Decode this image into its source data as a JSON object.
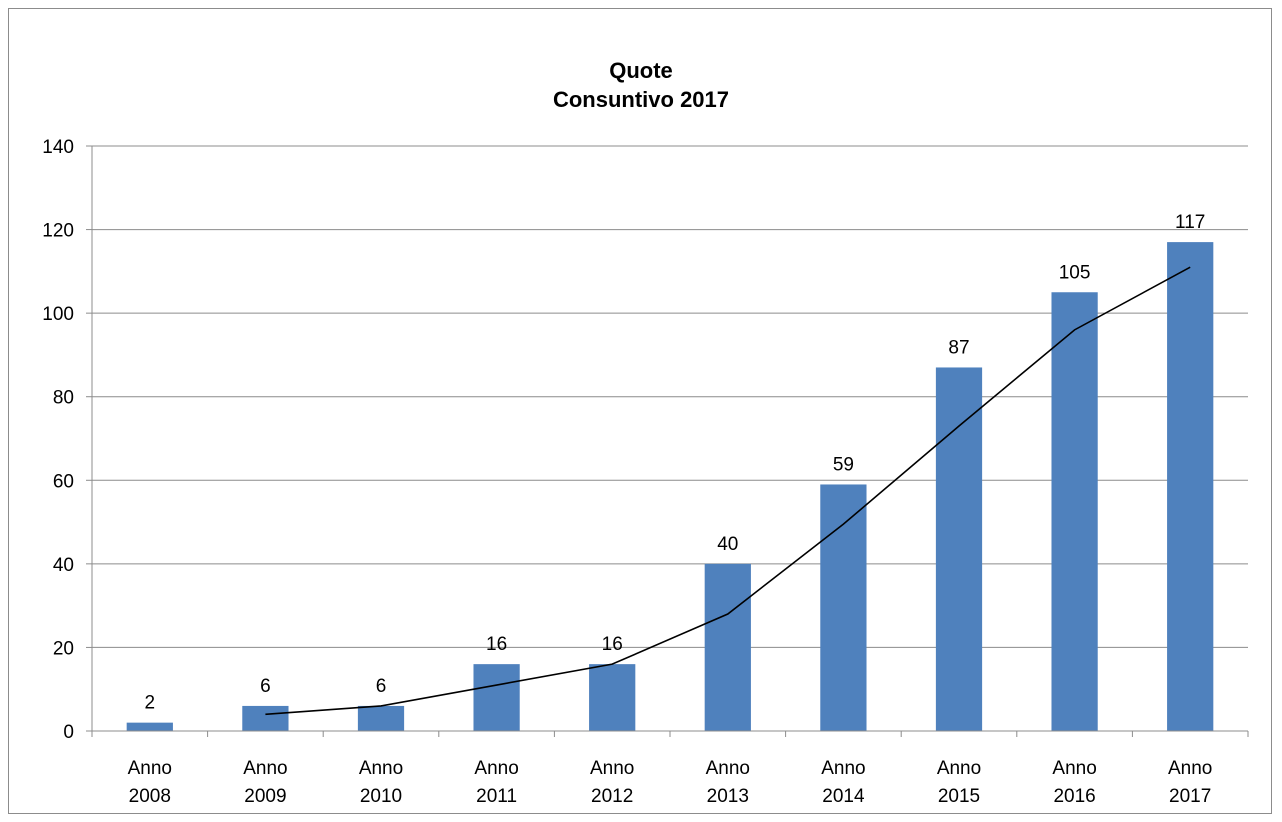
{
  "chart_data": {
    "type": "bar",
    "title": "Quote",
    "subtitle": "Consuntivo 2017",
    "categories": [
      [
        "Anno",
        "2008"
      ],
      [
        "Anno",
        "2009"
      ],
      [
        "Anno",
        "2010"
      ],
      [
        "Anno",
        "2011"
      ],
      [
        "Anno",
        "2012"
      ],
      [
        "Anno",
        "2013"
      ],
      [
        "Anno",
        "2014"
      ],
      [
        "Anno",
        "2015"
      ],
      [
        "Anno",
        "2016"
      ],
      [
        "Anno",
        "2017"
      ]
    ],
    "series": [
      {
        "values": [
          2,
          6,
          6,
          16,
          16,
          40,
          59,
          87,
          105,
          117
        ]
      }
    ],
    "trendline": {
      "type": "moving-average-2",
      "values": [
        null,
        4,
        6,
        11,
        16,
        28,
        49.5,
        73,
        96,
        111
      ]
    },
    "data_labels": [
      "2",
      "6",
      "6",
      "16",
      "16",
      "40",
      "59",
      "87",
      "105",
      "117"
    ],
    "y_ticks": [
      "0",
      "20",
      "40",
      "60",
      "80",
      "100",
      "120",
      "140"
    ],
    "ylim": [
      0,
      140
    ],
    "grid": true,
    "legend": "none",
    "colors": {
      "bar": "#4f81bd",
      "trend": "#000000",
      "grid": "#8c8c8c"
    }
  }
}
